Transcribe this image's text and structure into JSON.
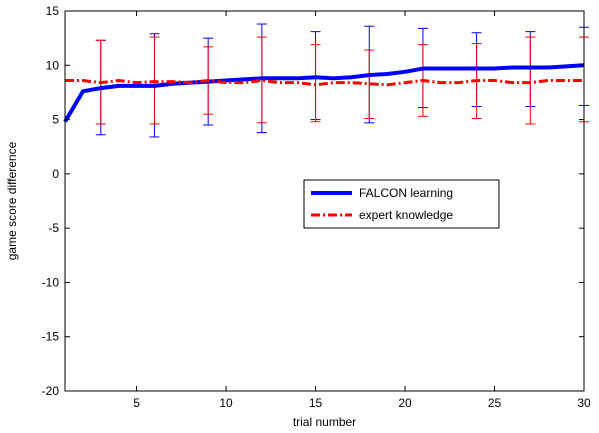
{
  "chart_data": {
    "type": "line",
    "xlabel": "trial number",
    "ylabel": "game score difference",
    "xlim": [
      1,
      30
    ],
    "ylim": [
      -20,
      15
    ],
    "xticks": [
      5,
      10,
      15,
      20,
      25,
      30
    ],
    "yticks": [
      -20,
      -15,
      -10,
      -5,
      0,
      5,
      10,
      15
    ],
    "grid": false,
    "legend_position": "center-right",
    "series": [
      {
        "name": "FALCON learning",
        "color": "#0000ff",
        "line_style": "solid",
        "x": [
          1,
          2,
          3,
          4,
          5,
          6,
          7,
          8,
          9,
          10,
          11,
          12,
          13,
          14,
          15,
          16,
          17,
          18,
          19,
          20,
          21,
          22,
          23,
          24,
          25,
          26,
          27,
          28,
          29,
          30
        ],
        "y": [
          4.8,
          7.6,
          7.9,
          8.1,
          8.1,
          8.1,
          8.3,
          8.4,
          8.5,
          8.6,
          8.7,
          8.8,
          8.8,
          8.8,
          8.9,
          8.8,
          8.9,
          9.1,
          9.2,
          9.4,
          9.7,
          9.7,
          9.7,
          9.7,
          9.7,
          9.8,
          9.8,
          9.8,
          9.9,
          10.0
        ],
        "error_bars": [
          {
            "x": 3,
            "low": 3.6,
            "high": 12.3
          },
          {
            "x": 6,
            "low": 3.4,
            "high": 12.9
          },
          {
            "x": 9,
            "low": 4.5,
            "high": 12.5
          },
          {
            "x": 12,
            "low": 3.8,
            "high": 13.8
          },
          {
            "x": 15,
            "low": 5.0,
            "high": 13.1
          },
          {
            "x": 18,
            "low": 4.7,
            "high": 13.6
          },
          {
            "x": 21,
            "low": 6.1,
            "high": 13.4
          },
          {
            "x": 24,
            "low": 6.2,
            "high": 13.0
          },
          {
            "x": 27,
            "low": 6.2,
            "high": 13.1
          },
          {
            "x": 30,
            "low": 6.3,
            "high": 13.5
          }
        ]
      },
      {
        "name": "expert knowledge",
        "color": "#ff0000",
        "line_style": "dash-dot",
        "x": [
          1,
          2,
          3,
          4,
          5,
          6,
          7,
          8,
          9,
          10,
          11,
          12,
          13,
          14,
          15,
          16,
          17,
          18,
          19,
          20,
          21,
          22,
          23,
          24,
          25,
          26,
          27,
          28,
          29,
          30
        ],
        "y": [
          8.6,
          8.6,
          8.4,
          8.6,
          8.4,
          8.5,
          8.5,
          8.4,
          8.6,
          8.4,
          8.4,
          8.6,
          8.4,
          8.4,
          8.2,
          8.4,
          8.4,
          8.3,
          8.2,
          8.4,
          8.6,
          8.4,
          8.4,
          8.6,
          8.6,
          8.4,
          8.4,
          8.6,
          8.6,
          8.6
        ],
        "error_bars": [
          {
            "x": 3,
            "low": 4.6,
            "high": 12.3
          },
          {
            "x": 6,
            "low": 4.6,
            "high": 12.6
          },
          {
            "x": 9,
            "low": 5.5,
            "high": 11.7
          },
          {
            "x": 12,
            "low": 4.7,
            "high": 12.6
          },
          {
            "x": 15,
            "low": 4.8,
            "high": 11.9
          },
          {
            "x": 18,
            "low": 5.1,
            "high": 11.4
          },
          {
            "x": 21,
            "low": 5.3,
            "high": 11.9
          },
          {
            "x": 24,
            "low": 5.1,
            "high": 12.0
          },
          {
            "x": 27,
            "low": 4.6,
            "high": 12.6
          },
          {
            "x": 30,
            "low": 4.8,
            "high": 12.6
          }
        ]
      }
    ]
  }
}
